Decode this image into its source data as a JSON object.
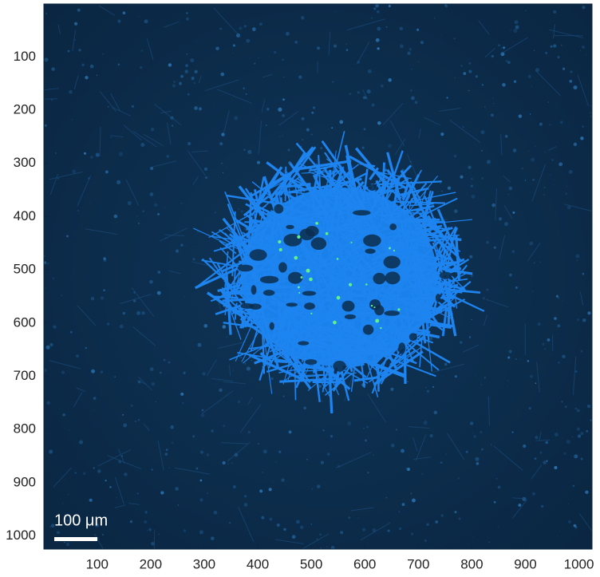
{
  "chart_data": {
    "type": "image",
    "xlim": [
      0.5,
      1024.5
    ],
    "ylim": [
      0.5,
      1024.5
    ],
    "y_reversed": true,
    "xticks": [
      100,
      200,
      300,
      400,
      500,
      600,
      700,
      800,
      900,
      1000
    ],
    "yticks": [
      100,
      200,
      300,
      400,
      500,
      600,
      700,
      800,
      900,
      1000
    ],
    "scale_bar_label": "100 μm"
  }
}
